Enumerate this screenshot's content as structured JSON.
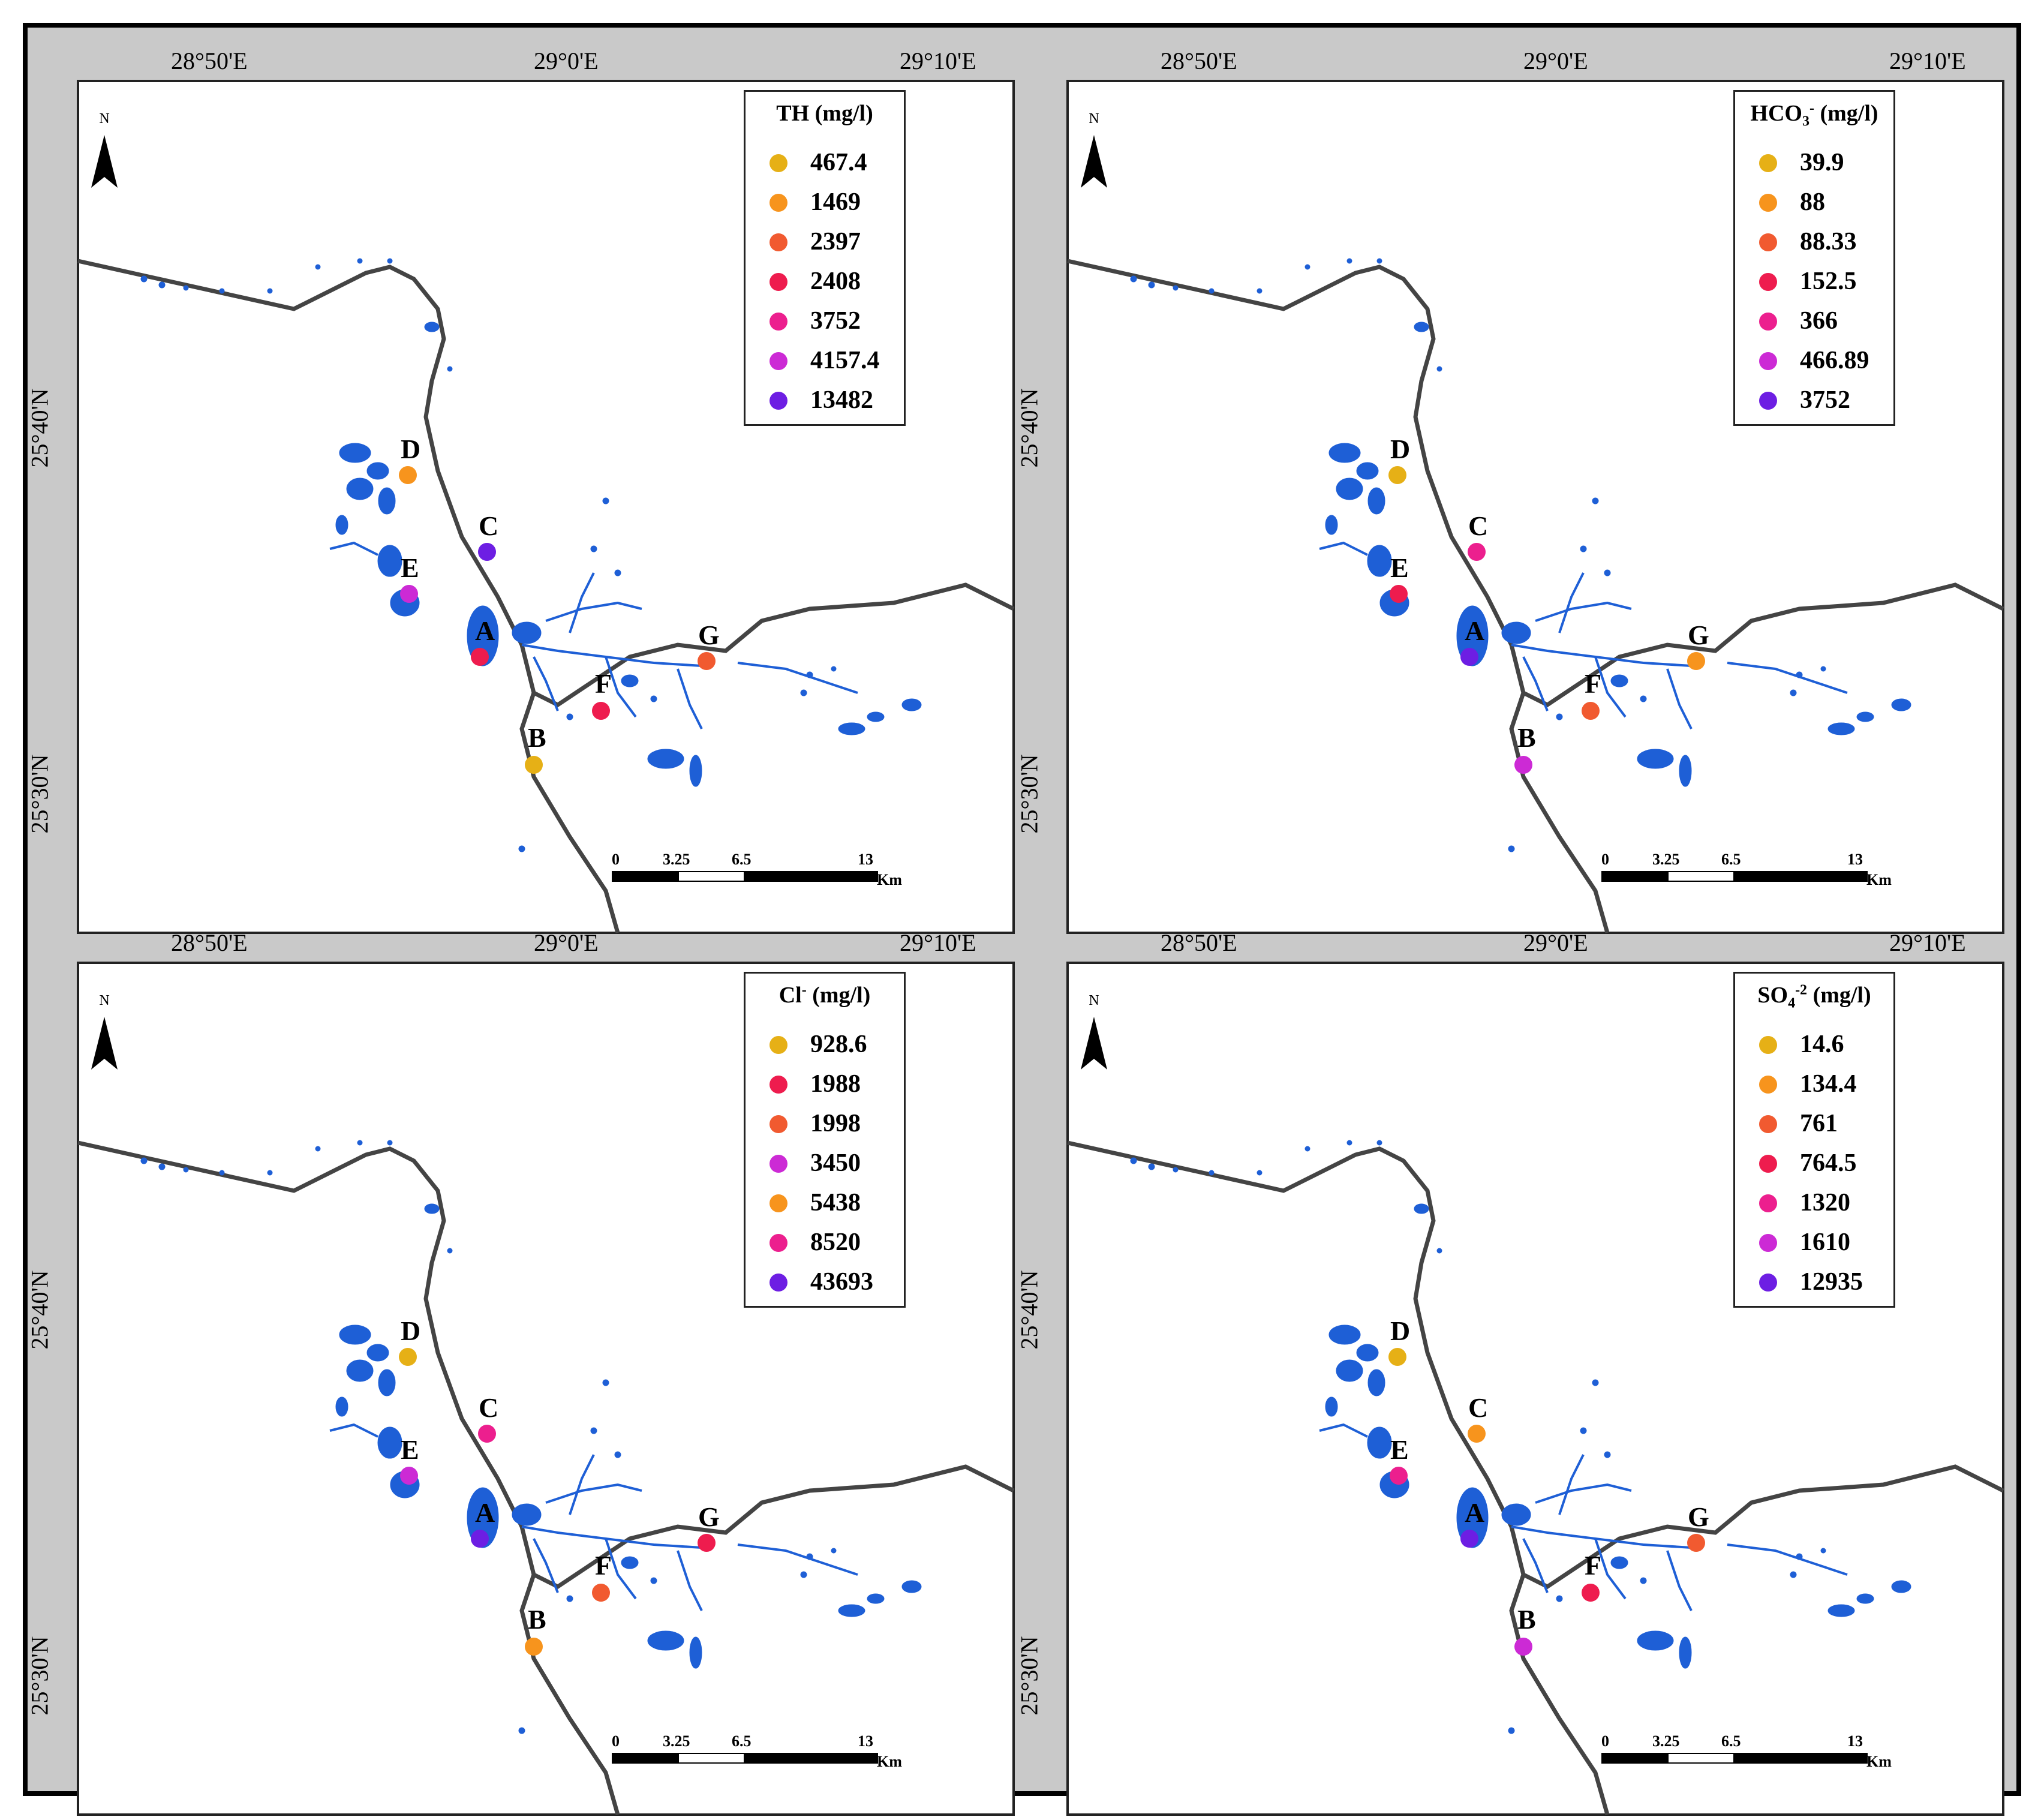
{
  "axes": {
    "lon_ticks": [
      "28°50'E",
      "29°0'E",
      "29°10'E"
    ],
    "lat_ticks": [
      "25°40'N",
      "25°30'N"
    ]
  },
  "north_label": "N",
  "scale": {
    "ticks": [
      "0",
      "3.25",
      "6.5",
      "13"
    ],
    "unit": "Km"
  },
  "sites": [
    "A",
    "B",
    "C",
    "D",
    "E",
    "F",
    "G"
  ],
  "panels": [
    {
      "title": "TH (mg/l)",
      "legend": [
        {
          "value": "467.4",
          "color": "#e6b016"
        },
        {
          "value": "1469",
          "color": "#f7941d"
        },
        {
          "value": "2397",
          "color": "#f15a30"
        },
        {
          "value": "2408",
          "color": "#ee1c4e"
        },
        {
          "value": "3752",
          "color": "#ec1f8e"
        },
        {
          "value": "4157.4",
          "color": "#cc2ad5"
        },
        {
          "value": "13482",
          "color": "#6d1ee3"
        }
      ],
      "site_colors": {
        "A": "#ee1c4e",
        "B": "#e6b016",
        "C": "#6d1ee3",
        "D": "#f7941d",
        "E": "#cc2ad5",
        "F": "#ee1c4e",
        "G": "#f15a30"
      }
    },
    {
      "title_base": "HCO",
      "title_sub": "3",
      "title_sup": "-",
      "title_unit": " (mg/l)",
      "legend": [
        {
          "value": "39.9",
          "color": "#e6b016"
        },
        {
          "value": "88",
          "color": "#f7941d"
        },
        {
          "value": "88.33",
          "color": "#f15a30"
        },
        {
          "value": "152.5",
          "color": "#ee1c4e"
        },
        {
          "value": "366",
          "color": "#ec1f8e"
        },
        {
          "value": "466.89",
          "color": "#cc2ad5"
        },
        {
          "value": "3752",
          "color": "#6d1ee3"
        }
      ],
      "site_colors": {
        "A": "#6d1ee3",
        "B": "#cc2ad5",
        "C": "#ec1f8e",
        "D": "#e6b016",
        "E": "#ee1c4e",
        "F": "#f15a30",
        "G": "#f7941d"
      }
    },
    {
      "title_base": "Cl",
      "title_sup": "-",
      "title_unit": " (mg/l)",
      "legend": [
        {
          "value": "928.6",
          "color": "#e6b016"
        },
        {
          "value": "1988",
          "color": "#ee1c4e"
        },
        {
          "value": "1998",
          "color": "#f15a30"
        },
        {
          "value": "3450",
          "color": "#cc2ad5"
        },
        {
          "value": "5438",
          "color": "#f7941d"
        },
        {
          "value": "8520",
          "color": "#ec1f8e"
        },
        {
          "value": "43693",
          "color": "#6d1ee3"
        }
      ],
      "site_colors": {
        "A": "#6d1ee3",
        "B": "#f7941d",
        "C": "#ec1f8e",
        "D": "#e6b016",
        "E": "#cc2ad5",
        "F": "#f15a30",
        "G": "#ee1c4e"
      }
    },
    {
      "title_base": "SO",
      "title_sub": "4",
      "title_sup": "-2",
      "title_unit": " (mg/l)",
      "legend": [
        {
          "value": "14.6",
          "color": "#e6b016"
        },
        {
          "value": "134.4",
          "color": "#f7941d"
        },
        {
          "value": "761",
          "color": "#f15a30"
        },
        {
          "value": "764.5",
          "color": "#ee1c4e"
        },
        {
          "value": "1320",
          "color": "#ec1f8e"
        },
        {
          "value": "1610",
          "color": "#cc2ad5"
        },
        {
          "value": "12935",
          "color": "#6d1ee3"
        }
      ],
      "site_colors": {
        "A": "#6d1ee3",
        "B": "#cc2ad5",
        "C": "#f7941d",
        "D": "#e6b016",
        "E": "#ec1f8e",
        "F": "#ee1c4e",
        "G": "#f15a30"
      }
    }
  ]
}
